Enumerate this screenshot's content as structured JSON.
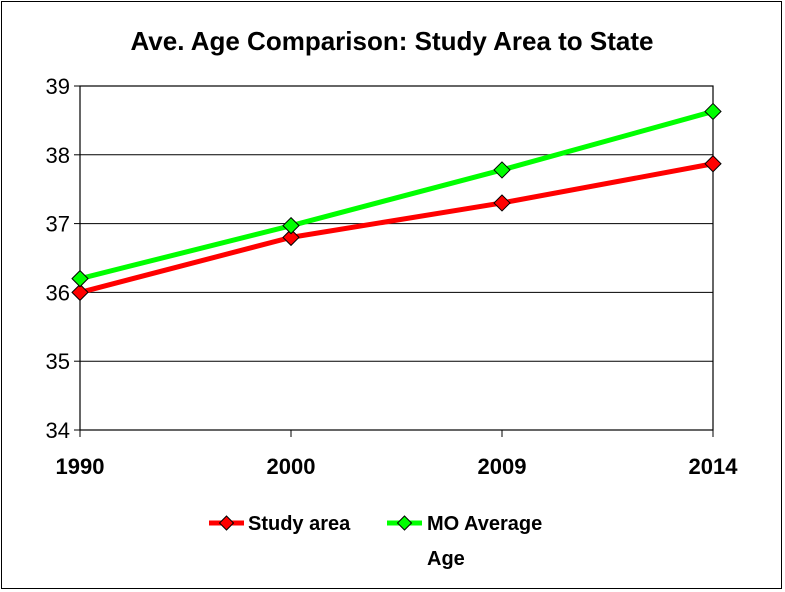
{
  "chart_data": {
    "type": "line",
    "title": "Ave. Age Comparison: Study Area to State",
    "xlabel": "",
    "ylabel": "",
    "categories": [
      "1990",
      "2000",
      "2009",
      "2014"
    ],
    "ylim": [
      34,
      39
    ],
    "yticks": [
      "34",
      "35",
      "36",
      "37",
      "38",
      "39"
    ],
    "grid": true,
    "legend_position": "bottom",
    "series": [
      {
        "name": "Study area",
        "color": "#ff0000",
        "marker_color": "#ff0000",
        "values": [
          36.0,
          36.8,
          37.3,
          37.87
        ]
      },
      {
        "name": "MO Average Age",
        "name_line1": "MO Average",
        "name_line2": "Age",
        "color": "#00ff00",
        "marker_color": "#00ff00",
        "values": [
          36.2,
          36.97,
          37.78,
          38.63
        ]
      }
    ]
  }
}
